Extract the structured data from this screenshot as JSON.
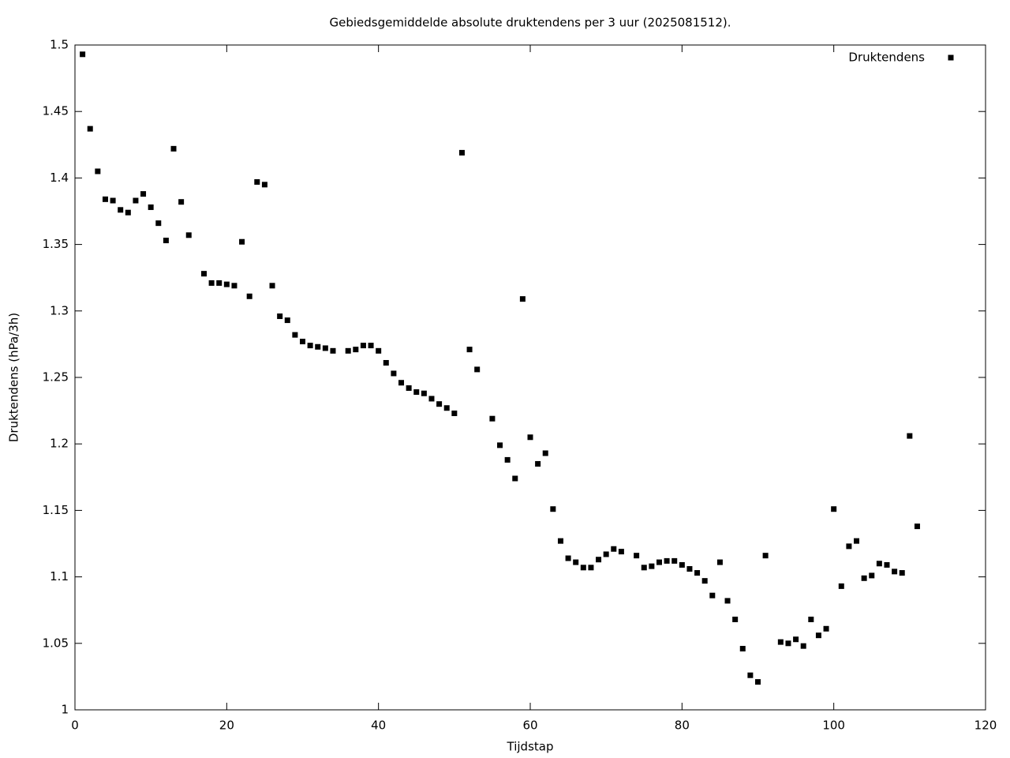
{
  "chart_data": {
    "type": "scatter",
    "title": "Gebiedsgemiddelde absolute druktendens per 3 uur (2025081512).",
    "x_label": "Tijdstap",
    "y_label": "Druktendens (hPa/3h)",
    "x": [
      1,
      2,
      3,
      4,
      5,
      6,
      7,
      8,
      9,
      10,
      11,
      12,
      13,
      14,
      15,
      17,
      18,
      19,
      20,
      21,
      22,
      23,
      24,
      25,
      26,
      27,
      28,
      29,
      30,
      31,
      32,
      33,
      34,
      36,
      37,
      38,
      39,
      40,
      41,
      42,
      43,
      44,
      45,
      46,
      47,
      48,
      49,
      50,
      51,
      52,
      53,
      55,
      56,
      57,
      58,
      59,
      60,
      61,
      62,
      63,
      64,
      65,
      66,
      67,
      68,
      69,
      70,
      71,
      72,
      74,
      75,
      76,
      77,
      78,
      79,
      80,
      81,
      82,
      83,
      84,
      85,
      86,
      87,
      88,
      89,
      90,
      91,
      93,
      94,
      95,
      96,
      97,
      98,
      99,
      100,
      101,
      102,
      103,
      104,
      105,
      106,
      107,
      108,
      109,
      110,
      111
    ],
    "series": [
      {
        "name": "Druktendens",
        "color": "#000000",
        "values": [
          1.493,
          1.437,
          1.405,
          1.384,
          1.383,
          1.376,
          1.374,
          1.383,
          1.388,
          1.378,
          1.366,
          1.353,
          1.422,
          1.382,
          1.357,
          1.328,
          1.321,
          1.321,
          1.32,
          1.319,
          1.352,
          1.311,
          1.397,
          1.395,
          1.319,
          1.296,
          1.293,
          1.282,
          1.277,
          1.274,
          1.273,
          1.272,
          1.27,
          1.27,
          1.271,
          1.274,
          1.274,
          1.27,
          1.261,
          1.253,
          1.246,
          1.242,
          1.239,
          1.238,
          1.234,
          1.23,
          1.227,
          1.223,
          1.419,
          1.271,
          1.256,
          1.219,
          1.199,
          1.188,
          1.174,
          1.309,
          1.205,
          1.185,
          1.193,
          1.151,
          1.127,
          1.114,
          1.111,
          1.107,
          1.107,
          1.113,
          1.117,
          1.121,
          1.119,
          1.116,
          1.107,
          1.108,
          1.111,
          1.112,
          1.112,
          1.109,
          1.106,
          1.103,
          1.097,
          1.086,
          1.111,
          1.082,
          1.068,
          1.046,
          1.026,
          1.021,
          1.116,
          1.051,
          1.05,
          1.053,
          1.048,
          1.068,
          1.056,
          1.061,
          1.151,
          1.093,
          1.123,
          1.127,
          1.099,
          1.101,
          1.11,
          1.109,
          1.104,
          1.103,
          1.206,
          1.138
        ]
      }
    ],
    "xlim": [
      0,
      120
    ],
    "xticks": [
      0,
      20,
      40,
      60,
      80,
      100,
      120
    ],
    "ylim": [
      1,
      1.5
    ],
    "yticks": [
      1,
      1.05,
      1.1,
      1.15,
      1.2,
      1.25,
      1.3,
      1.35,
      1.4,
      1.45,
      1.5
    ],
    "legend": "upper right",
    "grid": false
  }
}
